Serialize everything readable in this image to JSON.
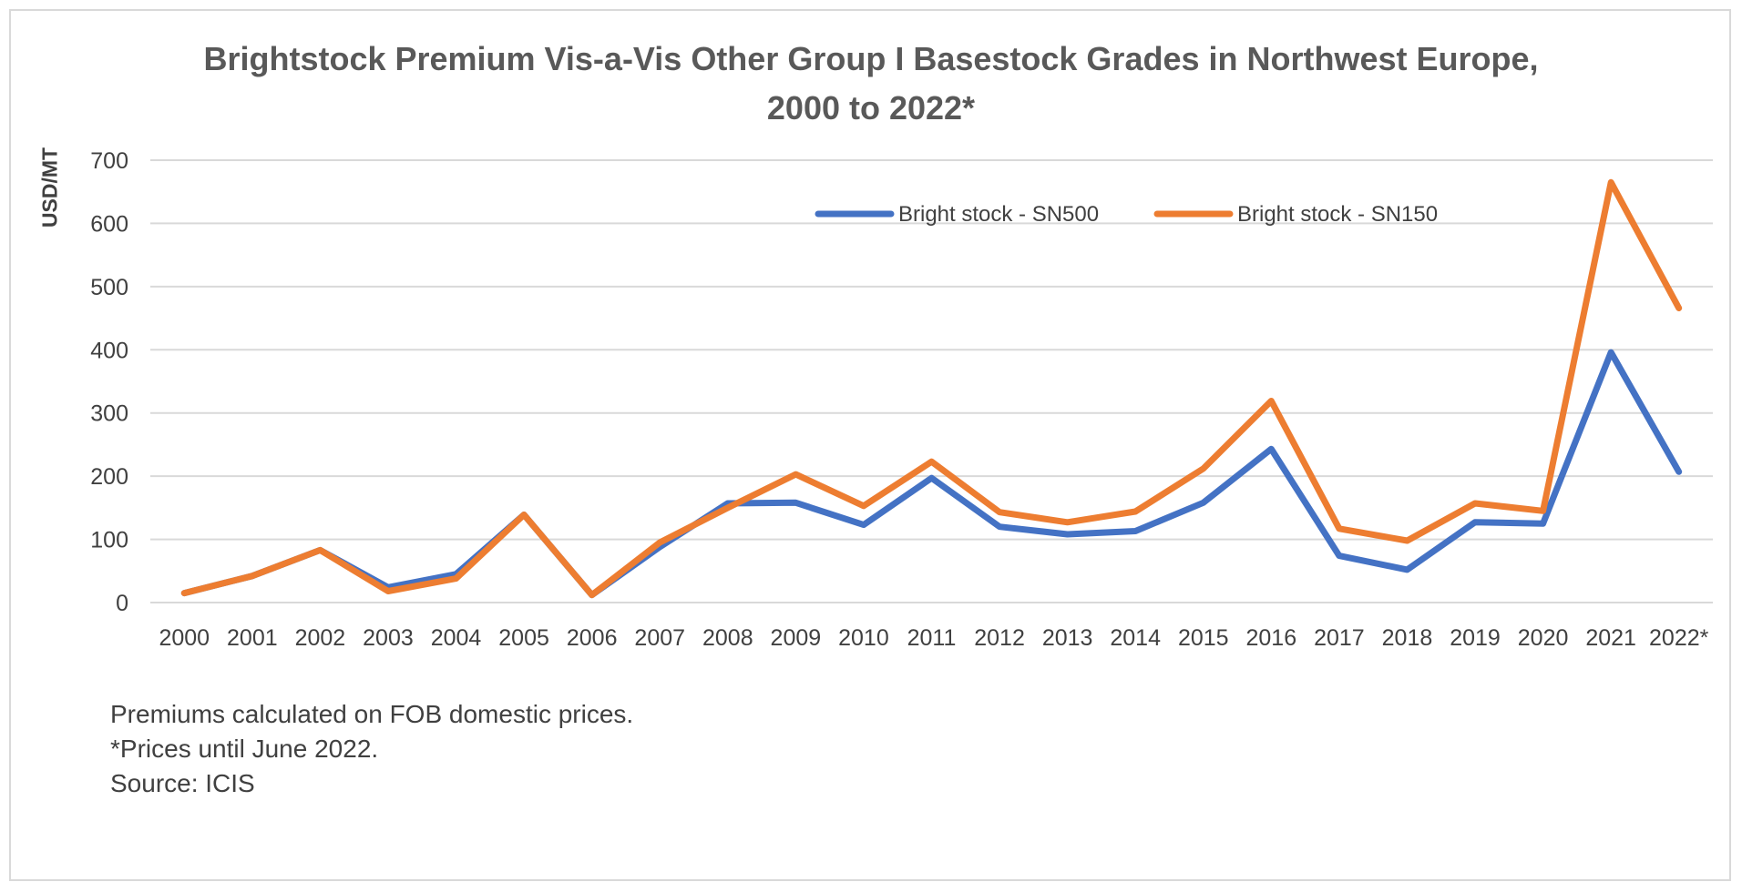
{
  "chart_data": {
    "type": "line",
    "title_lines": [
      "Brightstock Premium Vis-a-Vis Other Group I Basestock Grades in Northwest Europe,",
      "2000 to 2022*"
    ],
    "ylabel": "USD/MT",
    "xlabel": "",
    "ylim": [
      0,
      700
    ],
    "yticks": [
      0,
      100,
      200,
      300,
      400,
      500,
      600,
      700
    ],
    "categories": [
      "2000",
      "2001",
      "2002",
      "2003",
      "2004",
      "2005",
      "2006",
      "2007",
      "2008",
      "2009",
      "2010",
      "2011",
      "2012",
      "2013",
      "2014",
      "2015",
      "2016",
      "2017",
      "2018",
      "2019",
      "2020",
      "2021",
      "2022*"
    ],
    "series": [
      {
        "name": "Bright stock - SN500",
        "color": "#4472c4",
        "values": [
          15,
          42,
          83,
          24,
          45,
          139,
          12,
          88,
          157,
          158,
          123,
          197,
          120,
          108,
          113,
          158,
          243,
          74,
          52,
          127,
          125,
          396,
          207
        ]
      },
      {
        "name": "Bright stock - SN150",
        "color": "#ed7d31",
        "values": [
          15,
          42,
          83,
          18,
          38,
          139,
          12,
          95,
          150,
          203,
          153,
          223,
          143,
          127,
          144,
          212,
          319,
          117,
          98,
          157,
          145,
          665,
          466
        ]
      }
    ],
    "grid": true,
    "legend_position": "top-right"
  },
  "notes": {
    "line1": "Premiums calculated on FOB domestic prices.",
    "line2": "*Prices until June 2022.",
    "line3": "Source: ICIS"
  }
}
